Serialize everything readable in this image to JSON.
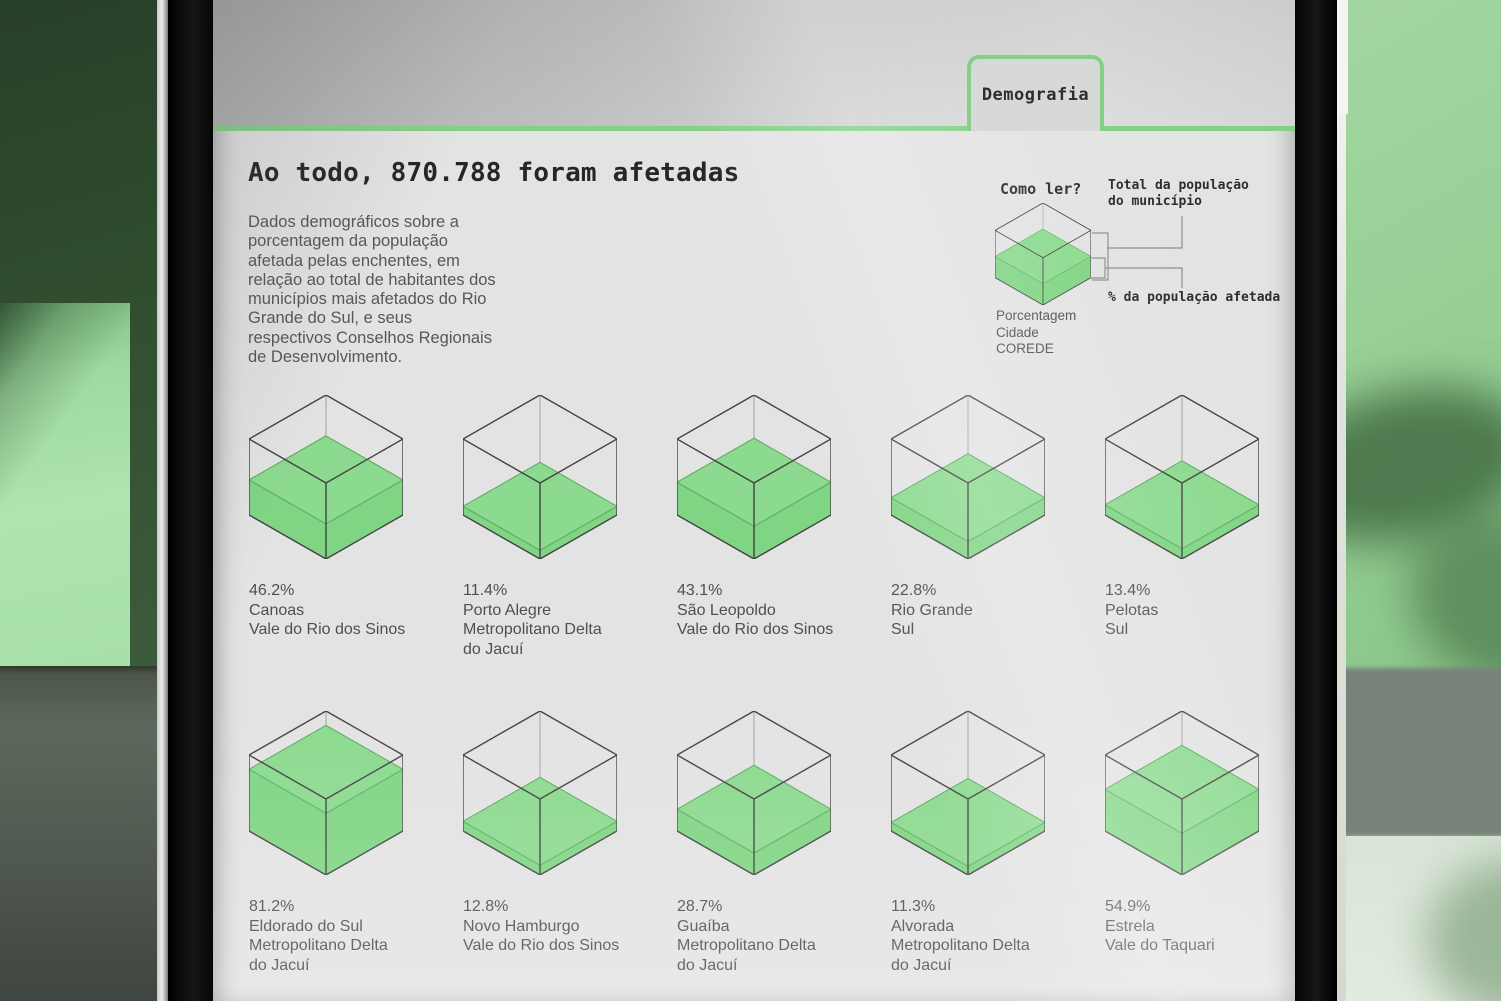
{
  "header": {
    "tab_label": "Demografia"
  },
  "main": {
    "title": "Ao todo, 870.788 foram afetadas",
    "description": "Dados demográficos sobre a porcentagem da população afetada pelas enchentes, em relação ao total de habitantes dos municípios mais afetados do Rio Grande do Sul, e seus respectivos Conselhos Regionais de Desenvolvimento."
  },
  "legend": {
    "heading": "Como ler?",
    "total_label_lines": [
      "Total da população",
      "do município"
    ],
    "affected_label": "% da população afetada",
    "caption": [
      "Porcentagem",
      "Cidade",
      "COREDE"
    ],
    "example_pct": 45
  },
  "chart_data": {
    "type": "isometric-cube-fill",
    "title": "Ao todo, 870.788 foram afetadas",
    "total_affected": "870.788",
    "unit": "% da população afetada em relação ao total do município",
    "municipalities": [
      {
        "pct": 46.2,
        "city": "Canoas",
        "corede_lines": [
          "Vale do Rio dos Sinos"
        ]
      },
      {
        "pct": 11.4,
        "city": "Porto Alegre",
        "corede_lines": [
          "Metropolitano Delta",
          "do Jacuí"
        ]
      },
      {
        "pct": 43.1,
        "city": "São Leopoldo",
        "corede_lines": [
          "Vale do Rio dos Sinos"
        ]
      },
      {
        "pct": 22.8,
        "city": "Rio Grande",
        "corede_lines": [
          "Sul"
        ]
      },
      {
        "pct": 13.4,
        "city": "Pelotas",
        "corede_lines": [
          "Sul"
        ]
      },
      {
        "pct": 81.2,
        "city": "Eldorado do Sul",
        "corede_lines": [
          "Metropolitano Delta",
          "do Jacuí"
        ]
      },
      {
        "pct": 12.8,
        "city": "Novo Hamburgo",
        "corede_lines": [
          "Vale do Rio dos Sinos"
        ]
      },
      {
        "pct": 28.7,
        "city": "Guaíba",
        "corede_lines": [
          "Metropolitano Delta",
          "do Jacuí"
        ]
      },
      {
        "pct": 11.3,
        "city": "Alvorada",
        "corede_lines": [
          "Metropolitano Delta",
          "do Jacuí"
        ]
      },
      {
        "pct": 54.9,
        "city": "Estrela",
        "corede_lines": [
          "Vale do Taquari"
        ]
      }
    ]
  },
  "colors": {
    "accent_green": "#84d088",
    "liquid_top": "#8cda8f",
    "liquid_side": "#80d584",
    "liquid_edge": "#5aa861",
    "wireframe": "#424242",
    "hidden_edge": "#a3a3a3",
    "connector_gray": "#8e8e8e"
  }
}
